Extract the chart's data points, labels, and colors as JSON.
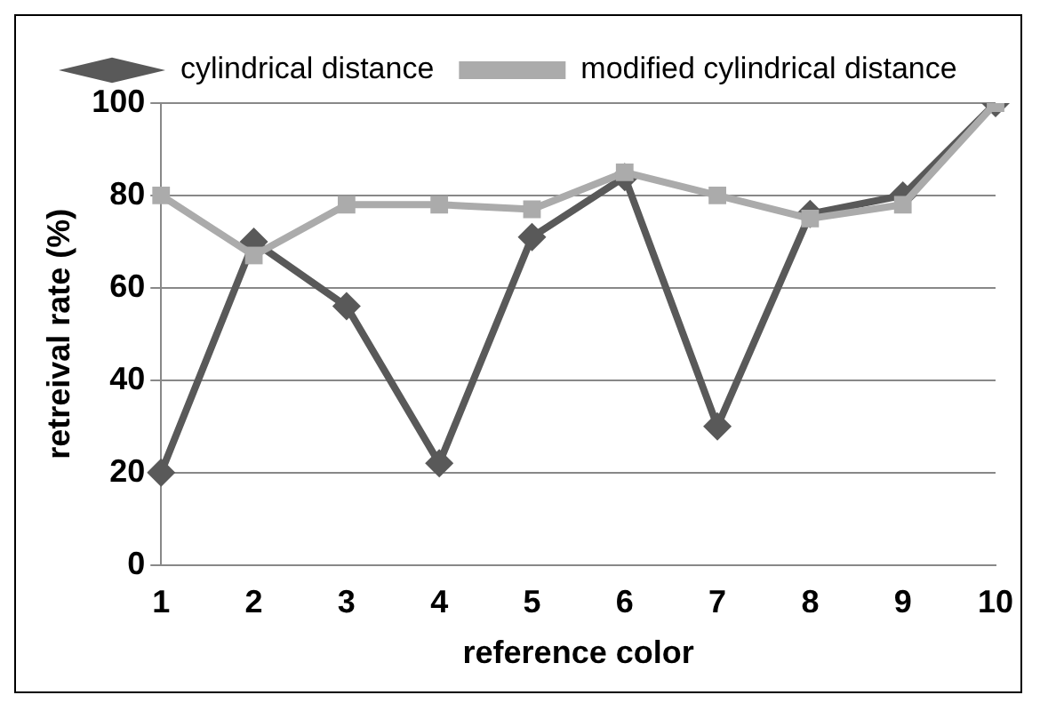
{
  "chart_data": {
    "type": "line",
    "xlabel": "reference color",
    "ylabel": "retreival rate (%)",
    "categories": [
      "1",
      "2",
      "3",
      "4",
      "5",
      "6",
      "7",
      "8",
      "9",
      "10"
    ],
    "series": [
      {
        "name": "cylindrical distance",
        "color": "#595959",
        "marker": "diamond",
        "values": [
          20,
          70,
          56,
          22,
          71,
          84,
          30,
          76,
          80,
          100
        ]
      },
      {
        "name": "modified cylindrical distance",
        "color": "#ababab",
        "marker": "square",
        "values": [
          80,
          67,
          78,
          78,
          77,
          85,
          80,
          75,
          78,
          100
        ]
      }
    ],
    "ylim": [
      0,
      100
    ],
    "yticks": [
      0,
      20,
      40,
      60,
      80,
      100
    ],
    "grid": "y",
    "legend": "top left"
  }
}
